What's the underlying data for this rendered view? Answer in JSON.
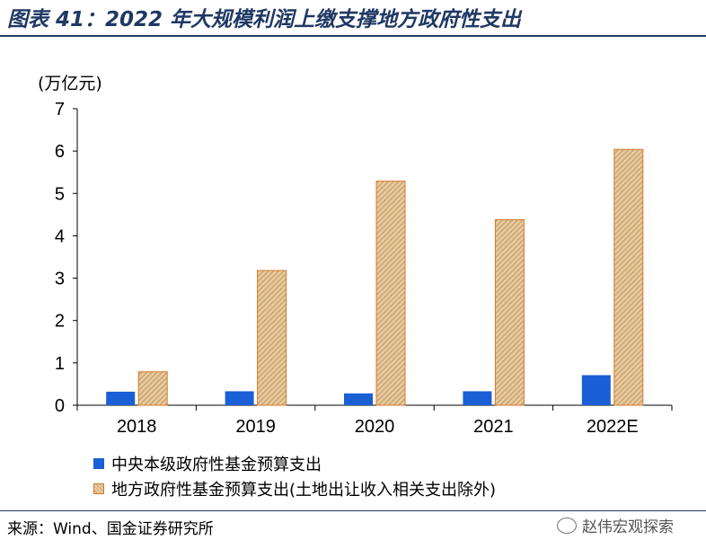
{
  "title": "图表 41：2022 年大规模利润上缴支撑地方政府性支出",
  "unit_label": "(万亿元)",
  "legend": [
    {
      "label": "中央本级政府性基金预算支出",
      "color": "#1a5fd6"
    },
    {
      "label": "地方政府性基金预算支出(土地出让收入相关支出除外)",
      "color": "#dcb98a"
    }
  ],
  "source": "来源：Wind、国金证券研究所",
  "watermark": "赵伟宏观探索",
  "chart_data": {
    "type": "bar",
    "categories": [
      "2018",
      "2019",
      "2020",
      "2021",
      "2022E"
    ],
    "series": [
      {
        "name": "中央本级政府性基金预算支出",
        "values": [
          0.32,
          0.33,
          0.28,
          0.33,
          0.71
        ]
      },
      {
        "name": "地方政府性基金预算支出(土地出让收入相关支出除外)",
        "values": [
          0.79,
          3.18,
          5.29,
          4.38,
          6.04
        ]
      }
    ],
    "ylim": [
      0,
      7
    ],
    "yticks": [
      0,
      1,
      2,
      3,
      4,
      5,
      6,
      7
    ],
    "xlabel": "",
    "ylabel": "(万亿元)",
    "grid": false,
    "legend_position": "bottom"
  }
}
